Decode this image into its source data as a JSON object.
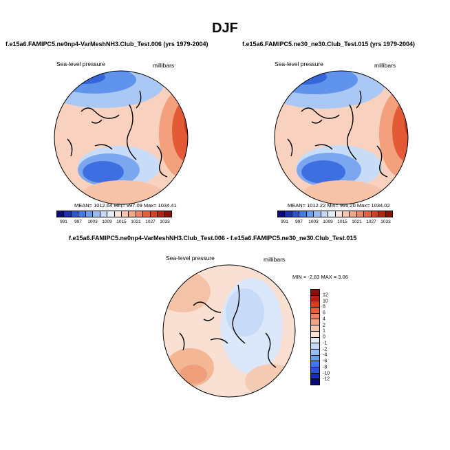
{
  "figure": {
    "title": "DJF"
  },
  "panels": [
    {
      "title": "f.e15a6.FAMIPC5.ne0np4-VarMeshNH3.Club_Test.006 (yrs 1979-2004)",
      "variable": "Sea-level pressure",
      "units": "millibars",
      "stats": "MEAN= 1012.64   Min= 997.09   Max= 1034.41"
    },
    {
      "title": "f.e15a6.FAMIPC5.ne30_ne30.Club_Test.015 (yrs 1979-2004)",
      "variable": "Sea-level pressure",
      "units": "millibars",
      "stats": "MEAN= 1012.22   Min= 995.20   Max= 1034.02"
    }
  ],
  "diff_panel": {
    "title": "f.e15a6.FAMIPC5.ne0np4-VarMeshNH3.Club_Test.006 - f.e15a6.FAMIPC5.ne30_ne30.Club_Test.015",
    "variable": "Sea-level pressure",
    "units": "millibars",
    "stats": "MIN =  -2.83 MAX =   3.06"
  },
  "slp_colorbar": {
    "labels": [
      "991",
      "997",
      "1003",
      "1009",
      "1015",
      "1021",
      "1027",
      "1033"
    ],
    "colors": [
      "#0a0a7a",
      "#1a2fb0",
      "#2a55d4",
      "#3f7ae8",
      "#6a9ef0",
      "#98bff5",
      "#c5daf8",
      "#e4eefb",
      "#fbe3d8",
      "#f7c6ae",
      "#f4a584",
      "#ef8260",
      "#e85e3c",
      "#d7401f",
      "#b52410",
      "#8a1006"
    ]
  },
  "diff_colorbar": {
    "labels": [
      "12",
      "10",
      "8",
      "6",
      "4",
      "2",
      "1",
      "0",
      "-1",
      "-2",
      "-4",
      "-6",
      "-8",
      "-10",
      "-12"
    ],
    "colors": [
      "#8a1006",
      "#b52410",
      "#d7401f",
      "#e85e3c",
      "#ef8260",
      "#f4a584",
      "#f7c6ae",
      "#fbe3d8",
      "#e4eefb",
      "#c5daf8",
      "#98bff5",
      "#6a9ef0",
      "#3f7ae8",
      "#2a55d4",
      "#1a2fb0",
      "#0a0a7a"
    ]
  }
}
